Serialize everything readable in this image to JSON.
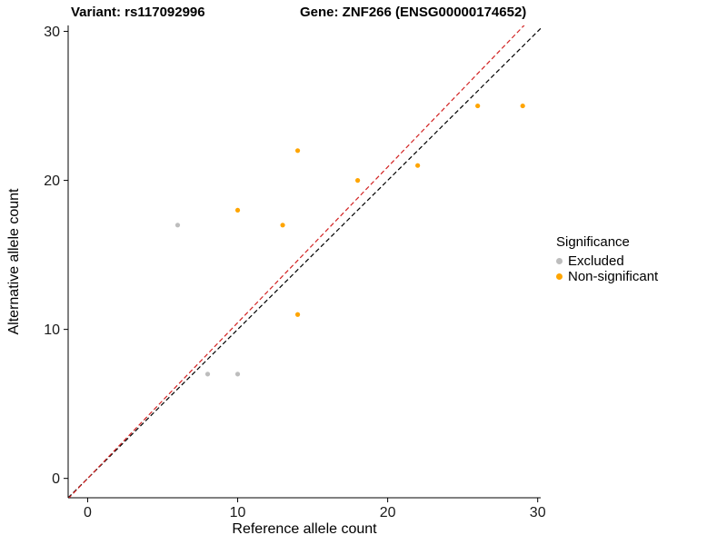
{
  "header": {
    "variant_title": "Variant: rs117092996",
    "gene_title": "Gene: ZNF266 (ENSG00000174652)"
  },
  "chart_data": {
    "type": "scatter",
    "xlabel": "Reference allele count",
    "ylabel": "Alternative allele count",
    "xlim": [
      -1.3,
      30.2
    ],
    "ylim": [
      -1.3,
      30.4
    ],
    "xticks": [
      0,
      10,
      20,
      30
    ],
    "yticks": [
      0,
      10,
      20,
      30
    ],
    "grid": false,
    "series": [
      {
        "name": "Excluded",
        "color": "#bdbdbd",
        "points": [
          [
            6,
            17
          ],
          [
            8,
            7
          ],
          [
            10,
            7
          ]
        ]
      },
      {
        "name": "Non-significant",
        "color": "#ffa500",
        "points": [
          [
            10,
            18
          ],
          [
            13,
            17
          ],
          [
            14,
            22
          ],
          [
            14,
            11
          ],
          [
            18,
            20
          ],
          [
            22,
            21
          ],
          [
            26,
            25
          ],
          [
            29,
            25
          ]
        ]
      }
    ],
    "lines": [
      {
        "name": "identity-line",
        "slope": 1,
        "intercept": 0,
        "color": "#000000",
        "dash": "5,3"
      },
      {
        "name": "expected-ratio-line",
        "slope": 1.045,
        "intercept": 0,
        "color": "#d22222",
        "dash": "5,3"
      }
    ],
    "legend": {
      "title": "Significance",
      "position": "right",
      "items": [
        {
          "label": "Excluded",
          "color": "#bdbdbd"
        },
        {
          "label": "Non-significant",
          "color": "#ffa500"
        }
      ]
    }
  }
}
